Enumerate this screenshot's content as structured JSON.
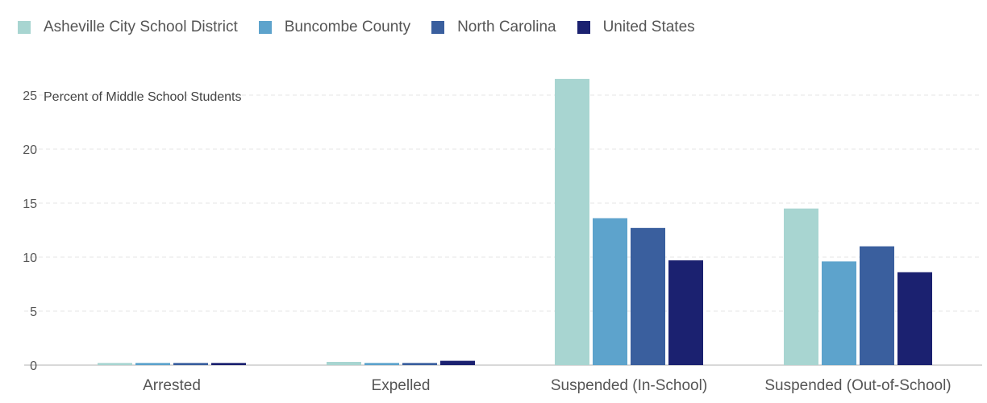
{
  "legend": {
    "items": [
      {
        "label": "Asheville City School District",
        "color": "#a8d5d1"
      },
      {
        "label": "Buncombe County",
        "color": "#5da3cc"
      },
      {
        "label": "North Carolina",
        "color": "#3a5f9e"
      },
      {
        "label": "United States",
        "color": "#1b2170"
      }
    ]
  },
  "chart_data": {
    "type": "bar",
    "title": "",
    "xlabel": "",
    "ylabel": "Percent of Middle School Students",
    "ylim": [
      0,
      27
    ],
    "yticks": [
      0,
      5,
      10,
      15,
      20,
      25
    ],
    "grid": true,
    "legend_position": "top-left",
    "categories": [
      "Arrested",
      "Expelled",
      "Suspended (In-School)",
      "Suspended (Out-of-School)"
    ],
    "series": [
      {
        "name": "Asheville City School District",
        "color": "#a8d5d1",
        "values": [
          0.2,
          0.3,
          26.5,
          14.5
        ]
      },
      {
        "name": "Buncombe County",
        "color": "#5da3cc",
        "values": [
          0.2,
          0.2,
          13.6,
          9.6
        ]
      },
      {
        "name": "North Carolina",
        "color": "#3a5f9e",
        "values": [
          0.2,
          0.2,
          12.7,
          11.0
        ]
      },
      {
        "name": "United States",
        "color": "#1b2170",
        "values": [
          0.2,
          0.4,
          9.7,
          8.6
        ]
      }
    ]
  }
}
